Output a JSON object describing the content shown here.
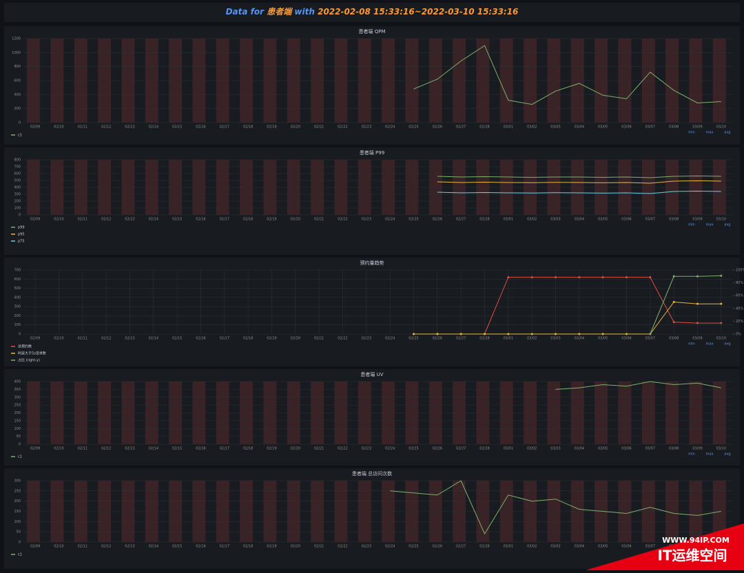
{
  "header": {
    "prefix": "Data for",
    "name": "患者端",
    "middle": "with",
    "range": "2022-02-08 15:33:16~2022-03-10 15:33:16"
  },
  "watermark": {
    "site": "WWW.94IP.COM",
    "brand": "IT运维空间"
  },
  "legend_stats": [
    "min",
    "max",
    "avg"
  ],
  "chart_data": [
    {
      "type": "line",
      "title": "患者端 QPM",
      "categories": [
        "02/09",
        "02/10",
        "02/11",
        "02/12",
        "02/13",
        "02/14",
        "02/15",
        "02/16",
        "02/17",
        "02/18",
        "02/19",
        "02/20",
        "02/21",
        "02/22",
        "02/23",
        "02/24",
        "02/25",
        "02/26",
        "02/27",
        "02/28",
        "03/01",
        "03/02",
        "03/03",
        "03/04",
        "03/05",
        "03/06",
        "03/07",
        "03/08",
        "03/09",
        "03/10"
      ],
      "series": [
        {
          "name": "c1",
          "color": "#7eb26d",
          "values": [
            null,
            null,
            null,
            null,
            null,
            null,
            null,
            null,
            null,
            null,
            null,
            null,
            null,
            null,
            null,
            null,
            480,
            620,
            880,
            1100,
            320,
            260,
            450,
            560,
            390,
            340,
            720,
            460,
            280,
            300
          ]
        }
      ],
      "ylim": [
        0,
        1200
      ],
      "yticks": [
        0,
        200,
        400,
        600,
        800,
        1000,
        1200
      ],
      "grid": false
    },
    {
      "type": "line",
      "title": "患者端 P99",
      "categories": [
        "02/09",
        "02/10",
        "02/11",
        "02/12",
        "02/13",
        "02/14",
        "02/15",
        "02/16",
        "02/17",
        "02/18",
        "02/19",
        "02/20",
        "02/21",
        "02/22",
        "02/23",
        "02/24",
        "02/25",
        "02/26",
        "02/27",
        "02/28",
        "03/01",
        "03/02",
        "03/03",
        "03/04",
        "03/05",
        "03/06",
        "03/07",
        "03/08",
        "03/09",
        "03/10"
      ],
      "series": [
        {
          "name": "p99",
          "color": "#7eb26d",
          "values": [
            null,
            null,
            null,
            null,
            null,
            null,
            null,
            null,
            null,
            null,
            null,
            null,
            null,
            null,
            null,
            null,
            null,
            560,
            550,
            555,
            550,
            545,
            550,
            550,
            545,
            550,
            540,
            560,
            565,
            560
          ]
        },
        {
          "name": "p95",
          "color": "#eab839",
          "values": [
            null,
            null,
            null,
            null,
            null,
            null,
            null,
            null,
            null,
            null,
            null,
            null,
            null,
            null,
            null,
            null,
            null,
            480,
            470,
            475,
            470,
            468,
            472,
            470,
            466,
            470,
            460,
            490,
            495,
            490
          ]
        },
        {
          "name": "p75",
          "color": "#6ed0e0",
          "values": [
            null,
            null,
            null,
            null,
            null,
            null,
            null,
            null,
            null,
            null,
            null,
            null,
            null,
            null,
            null,
            null,
            null,
            330,
            320,
            325,
            320,
            318,
            322,
            320,
            316,
            320,
            310,
            340,
            345,
            340
          ]
        }
      ],
      "ylim": [
        0,
        800
      ],
      "yticks": [
        0,
        100,
        200,
        300,
        400,
        500,
        600,
        700,
        800
      ],
      "grid": false
    },
    {
      "type": "line",
      "title": "预约量趋势",
      "categories": [
        "02/09",
        "02/10",
        "02/11",
        "02/12",
        "02/13",
        "02/14",
        "02/15",
        "02/16",
        "02/17",
        "02/18",
        "02/19",
        "02/20",
        "02/21",
        "02/22",
        "02/23",
        "02/24",
        "02/25",
        "02/26",
        "02/27",
        "02/28",
        "03/01",
        "03/02",
        "03/03",
        "03/04",
        "03/05",
        "03/06",
        "03/07",
        "03/08",
        "03/09",
        "03/10"
      ],
      "series": [
        {
          "name": "总预约数",
          "color": "#e24d42",
          "values": [
            null,
            null,
            null,
            null,
            null,
            null,
            null,
            null,
            null,
            null,
            null,
            null,
            null,
            null,
            null,
            null,
            0,
            0,
            0,
            0,
            620,
            620,
            620,
            620,
            620,
            620,
            620,
            130,
            120,
            120
          ]
        },
        {
          "name": "时延大于5s请求数",
          "color": "#eab839",
          "values": [
            null,
            null,
            null,
            null,
            null,
            null,
            null,
            null,
            null,
            null,
            null,
            null,
            null,
            null,
            null,
            null,
            0,
            0,
            0,
            0,
            0,
            0,
            0,
            0,
            0,
            0,
            0,
            350,
            330,
            330
          ]
        },
        {
          "name": "占比 (right-y)",
          "color": "#7eb26d",
          "axis": "y2",
          "values": [
            null,
            null,
            null,
            null,
            null,
            null,
            null,
            null,
            null,
            null,
            null,
            null,
            null,
            null,
            null,
            null,
            null,
            null,
            null,
            null,
            null,
            null,
            null,
            null,
            null,
            null,
            0,
            90,
            90,
            91
          ]
        }
      ],
      "ylim": [
        0,
        700
      ],
      "yticks": [
        0,
        100,
        200,
        300,
        400,
        500,
        600,
        700
      ],
      "y2lim": [
        0,
        100
      ],
      "y2ticks": [
        {
          "value": 0,
          "label": "0%"
        },
        {
          "value": 20,
          "label": "20%"
        },
        {
          "value": 40,
          "label": "40%"
        },
        {
          "value": 60,
          "label": "60%"
        },
        {
          "value": 80,
          "label": "80%"
        },
        {
          "value": 100,
          "label": "100%"
        }
      ],
      "grid": true
    },
    {
      "type": "line",
      "title": "患者端 UV",
      "categories": [
        "02/09",
        "02/10",
        "02/11",
        "02/12",
        "02/13",
        "02/14",
        "02/15",
        "02/16",
        "02/17",
        "02/18",
        "02/19",
        "02/20",
        "02/21",
        "02/22",
        "02/23",
        "02/24",
        "02/25",
        "02/26",
        "02/27",
        "02/28",
        "03/01",
        "03/02",
        "03/03",
        "03/04",
        "03/05",
        "03/06",
        "03/07",
        "03/08",
        "03/09",
        "03/10"
      ],
      "series": [
        {
          "name": "c1",
          "color": "#7eb26d",
          "values": [
            null,
            null,
            null,
            null,
            null,
            null,
            null,
            null,
            null,
            null,
            null,
            null,
            null,
            null,
            null,
            null,
            null,
            null,
            null,
            null,
            null,
            null,
            350,
            360,
            380,
            370,
            400,
            380,
            390,
            360
          ]
        }
      ],
      "ylim": [
        0,
        400
      ],
      "yticks": [
        0,
        50,
        100,
        150,
        200,
        250,
        300,
        350,
        400
      ],
      "grid": false
    },
    {
      "type": "line",
      "title": "患者端 总访问次数",
      "categories": [
        "02/09",
        "02/10",
        "02/11",
        "02/12",
        "02/13",
        "02/14",
        "02/15",
        "02/16",
        "02/17",
        "02/18",
        "02/19",
        "02/20",
        "02/21",
        "02/22",
        "02/23",
        "02/24",
        "02/25",
        "02/26",
        "02/27",
        "02/28",
        "03/01",
        "03/02",
        "03/03",
        "03/04",
        "03/05",
        "03/06",
        "03/07",
        "03/08",
        "03/09",
        "03/10"
      ],
      "series": [
        {
          "name": "c1",
          "color": "#7eb26d",
          "values": [
            null,
            null,
            null,
            null,
            null,
            null,
            null,
            null,
            null,
            null,
            null,
            null,
            null,
            null,
            null,
            250,
            240,
            230,
            300,
            40,
            230,
            200,
            210,
            160,
            150,
            140,
            170,
            140,
            130,
            150
          ]
        }
      ],
      "ylim": [
        0,
        300
      ],
      "yticks": [
        0,
        50,
        100,
        150,
        200,
        250,
        300
      ],
      "grid": false
    }
  ]
}
